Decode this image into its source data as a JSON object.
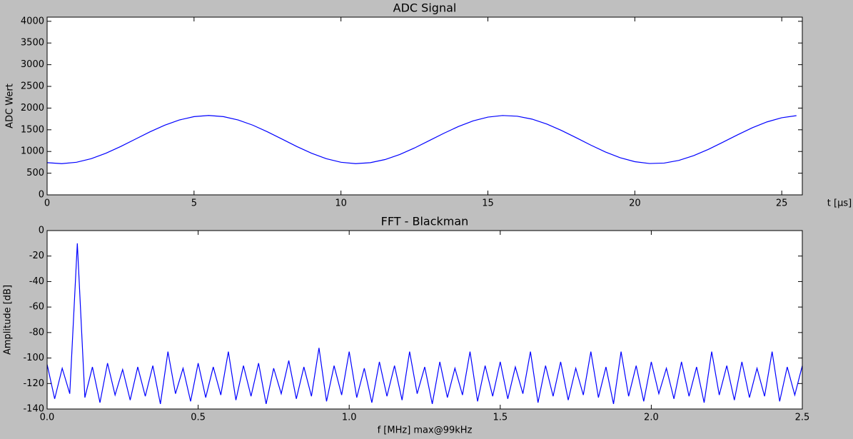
{
  "chart_data": [
    {
      "type": "line",
      "title": "ADC Signal",
      "xlabel": "t [μs]",
      "ylabel": "ADC Wert",
      "color": "#0000ff",
      "xlim": [
        0,
        25.7
      ],
      "ylim": [
        0,
        4096
      ],
      "xticks": [
        0,
        5,
        10,
        15,
        20,
        25
      ],
      "yticks": [
        0,
        500,
        1000,
        1500,
        2000,
        2500,
        3000,
        3500,
        4000
      ],
      "x": [
        0,
        0.5,
        1,
        1.5,
        2,
        2.5,
        3,
        3.5,
        4,
        4.5,
        5,
        5.5,
        6,
        6.5,
        7,
        7.5,
        8,
        8.5,
        9,
        9.5,
        10,
        10.5,
        11,
        11.5,
        12,
        12.5,
        13,
        13.5,
        14,
        14.5,
        15,
        15.5,
        16,
        16.5,
        17,
        17.5,
        18,
        18.5,
        19,
        19.5,
        20,
        20.5,
        21,
        21.5,
        22,
        22.5,
        23,
        23.5,
        24,
        24.5,
        25,
        25.5
      ],
      "values": [
        742,
        720,
        752,
        834,
        959,
        1113,
        1283,
        1453,
        1605,
        1726,
        1803,
        1830,
        1803,
        1726,
        1606,
        1453,
        1284,
        1114,
        959,
        834,
        752,
        720,
        742,
        814,
        930,
        1080,
        1249,
        1419,
        1576,
        1705,
        1792,
        1829,
        1813,
        1746,
        1633,
        1486,
        1319,
        1147,
        988,
        857,
        765,
        723,
        733,
        795,
        904,
        1048,
        1214,
        1385,
        1547,
        1682,
        1778,
        1826
      ]
    },
    {
      "type": "line",
      "title": "FFT - Blackman",
      "xlabel": "f [MHz] max@99kHz",
      "ylabel": "Amplitude [dB]",
      "color": "#0000ff",
      "xlim": [
        0,
        2.5
      ],
      "ylim": [
        -140,
        0
      ],
      "xticks": [
        {
          "value": 0,
          "label": "0.0"
        },
        0.5,
        {
          "value": 1,
          "label": "1.0"
        },
        1.5,
        {
          "value": 2,
          "label": "2.0"
        },
        2.5
      ],
      "yticks": [
        -140,
        -120,
        -100,
        -80,
        -60,
        -40,
        -20,
        0
      ],
      "x": [
        0,
        0.025,
        0.05,
        0.075,
        0.1,
        0.125,
        0.15,
        0.175,
        0.2,
        0.225,
        0.25,
        0.275,
        0.3,
        0.325,
        0.35,
        0.375,
        0.4,
        0.425,
        0.45,
        0.475,
        0.5,
        0.525,
        0.55,
        0.575,
        0.6,
        0.625,
        0.65,
        0.675,
        0.7,
        0.725,
        0.75,
        0.775,
        0.8,
        0.825,
        0.85,
        0.875,
        0.9,
        0.925,
        0.95,
        0.975,
        1,
        1.025,
        1.05,
        1.075,
        1.1,
        1.125,
        1.15,
        1.175,
        1.2,
        1.225,
        1.25,
        1.275,
        1.3,
        1.325,
        1.35,
        1.375,
        1.4,
        1.425,
        1.45,
        1.475,
        1.5,
        1.525,
        1.55,
        1.575,
        1.6,
        1.625,
        1.65,
        1.675,
        1.7,
        1.725,
        1.75,
        1.775,
        1.8,
        1.825,
        1.85,
        1.875,
        1.9,
        1.925,
        1.95,
        1.975,
        2,
        2.025,
        2.05,
        2.075,
        2.1,
        2.125,
        2.15,
        2.175,
        2.2,
        2.225,
        2.25,
        2.275,
        2.3,
        2.325,
        2.35,
        2.375,
        2.4,
        2.425,
        2.45,
        2.475,
        2.5
      ],
      "values": [
        -105,
        -132,
        -108,
        -128,
        -10,
        -131,
        -107,
        -135,
        -104,
        -129,
        -109,
        -133,
        -107,
        -130,
        -106,
        -136,
        -95,
        -128,
        -108,
        -134,
        -104,
        -131,
        -107,
        -129,
        -95,
        -133,
        -106,
        -130,
        -104,
        -136,
        -108,
        -128,
        -102,
        -132,
        -107,
        -130,
        -92,
        -134,
        -106,
        -129,
        -95,
        -131,
        -108,
        -135,
        -103,
        -130,
        -106,
        -133,
        -95,
        -128,
        -107,
        -136,
        -103,
        -131,
        -108,
        -129,
        -95,
        -134,
        -106,
        -130,
        -103,
        -132,
        -107,
        -128,
        -95,
        -135,
        -106,
        -130,
        -103,
        -133,
        -108,
        -129,
        -95,
        -131,
        -107,
        -136,
        -95,
        -130,
        -106,
        -134,
        -103,
        -128,
        -108,
        -132,
        -103,
        -130,
        -107,
        -135,
        -95,
        -129,
        -106,
        -133,
        -103,
        -131,
        -108,
        -130,
        -95,
        -134,
        -107,
        -129,
        -106
      ]
    }
  ]
}
